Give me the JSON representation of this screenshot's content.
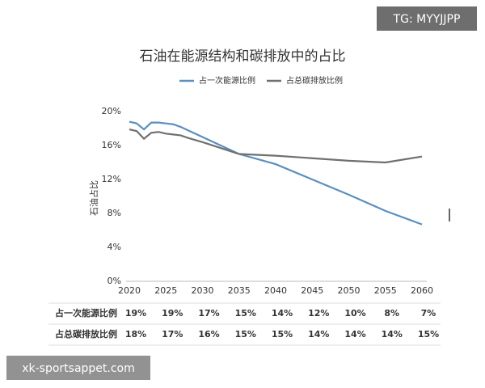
{
  "watermark_top": "TG: MYYJJPP",
  "watermark_bottom": "xk-sportsappet.com",
  "chart_data": {
    "type": "line",
    "title": "石油在能源结构和碳排放中的占比",
    "y_label": "石油占比",
    "x": [
      2020,
      2021,
      2022,
      2023,
      2024,
      2025,
      2026,
      2027,
      2028,
      2030,
      2035,
      2040,
      2045,
      2050,
      2055,
      2060
    ],
    "series": [
      {
        "name": "占一次能源比例",
        "color": "#5b8fbf",
        "values": [
          18.8,
          18.6,
          17.9,
          18.7,
          18.7,
          18.6,
          18.5,
          18.2,
          17.8,
          17.0,
          15.0,
          13.8,
          12.0,
          10.2,
          8.3,
          6.7
        ]
      },
      {
        "name": "占总碳排放比例",
        "color": "#707070",
        "values": [
          17.9,
          17.7,
          16.8,
          17.5,
          17.6,
          17.4,
          17.3,
          17.2,
          16.9,
          16.4,
          15.0,
          14.8,
          14.5,
          14.2,
          14.0,
          14.7
        ]
      }
    ],
    "xlim": [
      2020,
      2060
    ],
    "xticks": [
      2020,
      2025,
      2030,
      2035,
      2040,
      2045,
      2050,
      2055,
      2060
    ],
    "ylim": [
      0,
      20
    ],
    "yticks": [
      {
        "value": 0,
        "label": "0%"
      },
      {
        "value": 4,
        "label": "4%"
      },
      {
        "value": 8,
        "label": "8%"
      },
      {
        "value": 12,
        "label": "12%"
      },
      {
        "value": 16,
        "label": "16%"
      },
      {
        "value": 20,
        "label": "20%"
      }
    ],
    "grid": false
  },
  "table": {
    "rows": [
      [
        "占一次能源比例",
        "19%",
        "19%",
        "17%",
        "15%",
        "14%",
        "12%",
        "10%",
        "8%",
        "7%"
      ],
      [
        "占总碳排放比例",
        "18%",
        "17%",
        "16%",
        "15%",
        "15%",
        "14%",
        "14%",
        "14%",
        "15%"
      ]
    ]
  }
}
